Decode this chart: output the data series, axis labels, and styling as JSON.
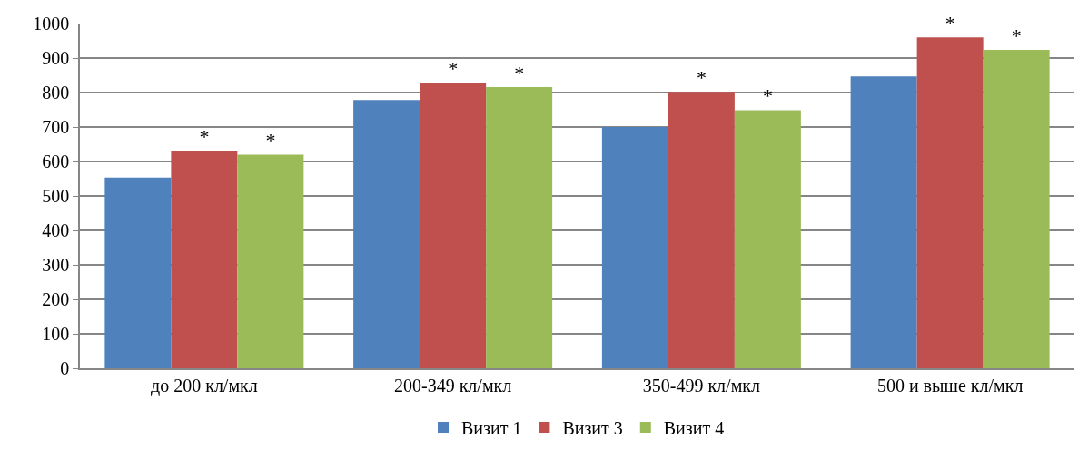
{
  "chart_data": {
    "type": "bar",
    "categories": [
      "до 200 кл/мкл",
      "200-349 кл/мкл",
      "350-499 кл/мкл",
      "500 и выше кл/мкл"
    ],
    "series": [
      {
        "name": "Визит 1",
        "color": "#4f81bd",
        "values": [
          553,
          778,
          700,
          847
        ]
      },
      {
        "name": "Визит 3",
        "color": "#c0504d",
        "values": [
          631,
          828,
          802,
          960
        ],
        "value_labels": [
          "*",
          "*",
          "*",
          "*"
        ]
      },
      {
        "name": "Визит 4",
        "color": "#9bbb59",
        "values": [
          620,
          816,
          749,
          924
        ],
        "value_labels": [
          "*",
          "*",
          "*",
          "*"
        ]
      }
    ],
    "ylim": [
      0,
      1000
    ],
    "yticks": [
      0,
      100,
      200,
      300,
      400,
      500,
      600,
      700,
      800,
      900,
      1000
    ],
    "grid": "y",
    "legend": "bottom"
  }
}
